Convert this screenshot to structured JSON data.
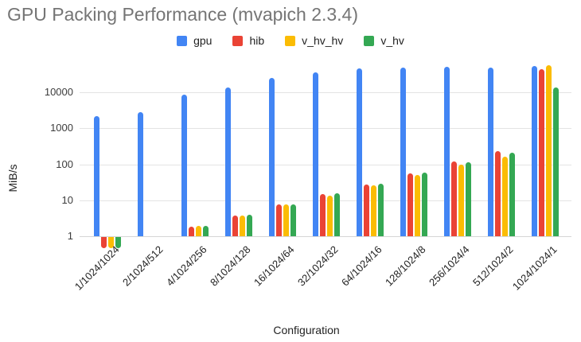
{
  "title": "GPU Packing Performance (mvapich 2.3.4)",
  "chart_data": {
    "type": "bar",
    "title": "GPU Packing Performance (mvapich 2.3.4)",
    "xlabel": "Configuration",
    "ylabel": "MiB/s",
    "yscale": "log",
    "yticks": [
      1,
      10,
      100,
      1000,
      10000
    ],
    "ylim": [
      0.4,
      100000
    ],
    "grid": true,
    "legend_position": "top",
    "categories": [
      "1/1024/1024",
      "2/1024/512",
      "4/1024/256",
      "8/1024/128",
      "16/1024/64",
      "32/1024/32",
      "64/1024/16",
      "128/1024/8",
      "256/1024/4",
      "512/1024/2",
      "1024/1024/1"
    ],
    "series": [
      {
        "name": "gpu",
        "color": "#4285F4",
        "values": [
          2200,
          2800,
          8500,
          13500,
          25000,
          37000,
          46000,
          48000,
          51000,
          48000,
          54000
        ]
      },
      {
        "name": "hib",
        "color": "#EA4335",
        "values": [
          0.5,
          null,
          1.85,
          3.8,
          7.7,
          15,
          27,
          56,
          120,
          235,
          44000
        ]
      },
      {
        "name": "v_hv_hv",
        "color": "#FBBC04",
        "values": [
          0.5,
          null,
          1.9,
          3.8,
          7.7,
          13.5,
          26,
          50,
          100,
          160,
          57000
        ]
      },
      {
        "name": "v_hv",
        "color": "#34A853",
        "values": [
          0.5,
          null,
          1.9,
          3.9,
          7.8,
          15.5,
          29,
          59,
          115,
          215,
          13500
        ]
      }
    ]
  },
  "colors": {
    "title_text": "#757575",
    "gridline": "#e3e3e3",
    "axis_text": "#222222"
  }
}
